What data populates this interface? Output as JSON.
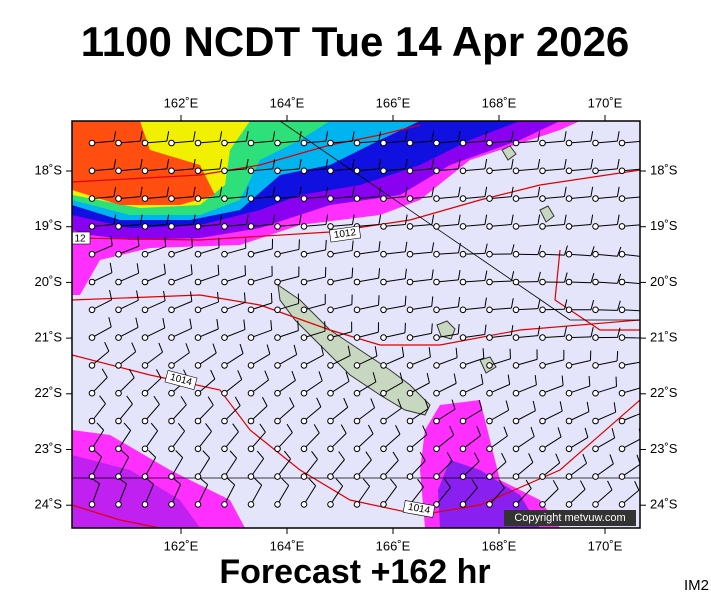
{
  "header": {
    "title": "1100 NCDT Tue 14 Apr 2026"
  },
  "footer": {
    "forecast": "Forecast +162 hr",
    "code": "IM2"
  },
  "map": {
    "lon_labels": [
      "162˚E",
      "164˚E",
      "166˚E",
      "168˚E",
      "170˚E"
    ],
    "lat_labels": [
      "18˚S",
      "19˚S",
      "20˚S",
      "21˚S",
      "22˚S",
      "23˚S",
      "24˚S"
    ],
    "isobar_labels": [
      "12",
      "1012",
      "1014",
      "1014"
    ],
    "copyright": "Copyright metvuw.com"
  }
}
